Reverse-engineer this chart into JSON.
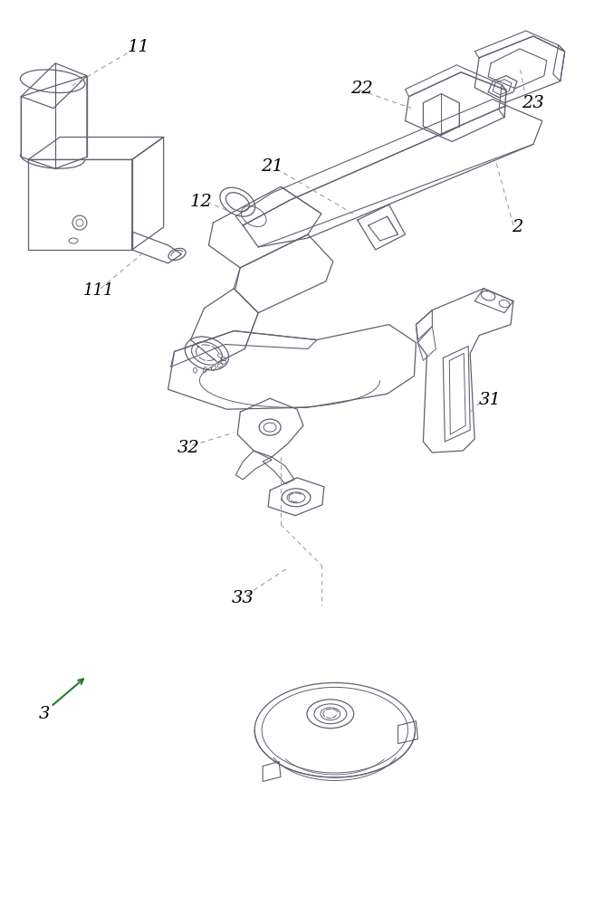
{
  "bg_color": "#ffffff",
  "line_color": "#606070",
  "label_color": "#000000",
  "dashed_color": "#999999",
  "arrow_color": "#2a7a2a",
  "figsize": [
    6.56,
    10.0
  ],
  "dpi": 100
}
